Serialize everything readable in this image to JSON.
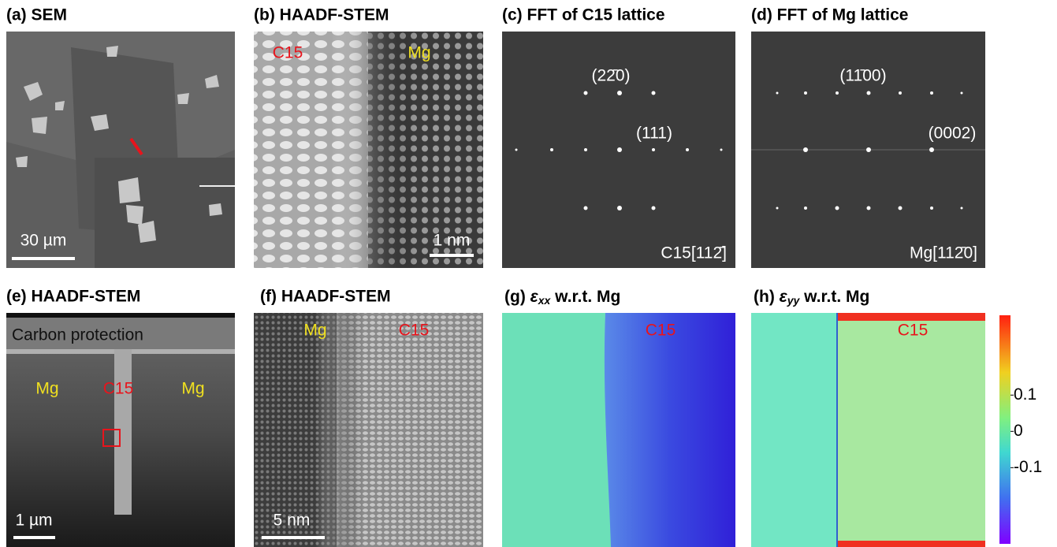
{
  "panels": [
    {
      "title": "(a) SEM",
      "scale_bar": "30 µm"
    },
    {
      "title": "(b) HAADF-STEM",
      "labels": [
        "C15",
        "Mg"
      ],
      "scale_bar": "1 nm"
    },
    {
      "title": "(c) FFT of C15 lattice",
      "labels": [
        "(22̄0)",
        "(111)"
      ],
      "zone_axis": "C15[112̄]"
    },
    {
      "title": "(d) FFT of Mg lattice",
      "labels": [
        "(11̄00)",
        "(0002)"
      ],
      "zone_axis": "Mg[112̄0]"
    },
    {
      "title": "(e) HAADF-STEM",
      "labels": [
        "Carbon protection",
        "Mg",
        "C15",
        "Mg"
      ],
      "scale_bar": "1 µm"
    },
    {
      "title": "(f) HAADF-STEM",
      "labels": [
        "Mg",
        "C15"
      ],
      "scale_bar": "5 nm"
    },
    {
      "title_label": "(g)",
      "symbol": "ε",
      "subscript": "xx",
      "title_suffix": "w.r.t. Mg",
      "labels": [
        "C15"
      ]
    },
    {
      "title_label": "(h)",
      "symbol": "ε",
      "subscript": "yy",
      "title_suffix": "w.r.t. Mg",
      "labels": [
        "C15"
      ]
    }
  ],
  "colorbar": {
    "lim": [
      -0.31,
      0.32
    ],
    "ticks": [
      0.1,
      0,
      -0.1
    ]
  }
}
